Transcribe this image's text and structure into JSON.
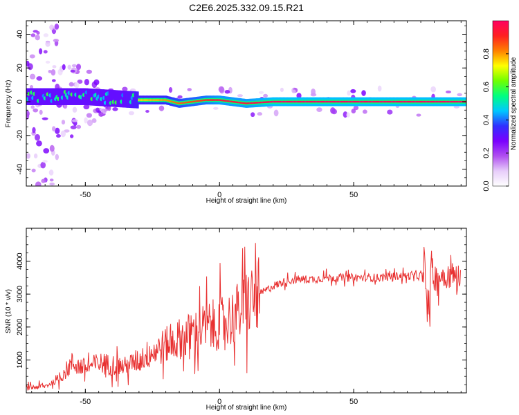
{
  "title": "C2E6.2025.332.09.15.R21",
  "chart_data": [
    {
      "type": "heatmap",
      "xlabel": "Height of straight line (km)",
      "ylabel": "Frequency (Hz)",
      "xlim": [
        -72,
        92
      ],
      "ylim": [
        -50,
        48
      ],
      "xticks": [
        -50,
        0,
        50
      ],
      "xtick_labels": [
        "-50",
        "0",
        "50"
      ],
      "yticks": [
        -40,
        -20,
        0,
        20,
        40
      ],
      "ytick_labels": [
        "-40",
        "-20",
        "0",
        "20",
        "40"
      ],
      "colorbar": {
        "label": "Normalized spectral amplitude",
        "range": [
          0,
          1
        ],
        "ticks": [
          0,
          0.2,
          0.4,
          0.6,
          0.8
        ],
        "tick_labels": [
          "0.0",
          "0.2",
          "0.4",
          "0.6",
          "0.8"
        ],
        "colors": [
          "#ffffff",
          "#e7cdfa",
          "#b04ff0",
          "#7a00ff",
          "#3030ff",
          "#00c8ff",
          "#00ff80",
          "#70ff00",
          "#ffff00",
          "#ff8000",
          "#ff2020",
          "#ff0060"
        ]
      },
      "ridge": [
        {
          "x": -60,
          "y": 3,
          "amp": 0.45
        },
        {
          "x": -50,
          "y": 3,
          "amp": 0.5
        },
        {
          "x": -40,
          "y": 2,
          "amp": 0.6
        },
        {
          "x": -30,
          "y": 1,
          "amp": 0.75
        },
        {
          "x": -20,
          "y": 1,
          "amp": 0.8
        },
        {
          "x": -15,
          "y": -1,
          "amp": 0.85
        },
        {
          "x": -5,
          "y": 1,
          "amp": 0.9
        },
        {
          "x": 0,
          "y": 1,
          "amp": 0.95
        },
        {
          "x": 10,
          "y": -1,
          "amp": 0.95
        },
        {
          "x": 20,
          "y": 0,
          "amp": 1.0
        },
        {
          "x": 60,
          "y": 0,
          "amp": 1.0
        },
        {
          "x": 90,
          "y": 0,
          "amp": 1.0
        }
      ]
    },
    {
      "type": "line",
      "xlabel": "Height of straight line (km)",
      "ylabel": "SNR (10 * v/v)",
      "xlim": [
        -72,
        92
      ],
      "ylim": [
        0,
        5000
      ],
      "xticks": [
        -50,
        0,
        50
      ],
      "xtick_labels": [
        "-50",
        "0",
        "50"
      ],
      "yticks": [
        1000,
        2000,
        3000,
        4000
      ],
      "ytick_labels": [
        "1000",
        "2000",
        "3000",
        "4000"
      ],
      "series": [
        {
          "color": "#e83030",
          "x": [
            -72,
            -65,
            -60,
            -55,
            -50,
            -45,
            -40,
            -35,
            -30,
            -25,
            -20,
            -15,
            -10,
            -5,
            0,
            5,
            10,
            15,
            20,
            25,
            30,
            35,
            40,
            45,
            50,
            55,
            60,
            65,
            70,
            75,
            78,
            80,
            85,
            90
          ],
          "y": [
            150,
            200,
            400,
            900,
            750,
            900,
            850,
            800,
            1000,
            1250,
            1450,
            1650,
            1800,
            2000,
            2100,
            2300,
            2700,
            3000,
            3250,
            3400,
            3450,
            3450,
            3500,
            3500,
            3500,
            3500,
            3500,
            3550,
            3550,
            3550,
            3600,
            3500,
            3600,
            3500
          ]
        }
      ]
    }
  ]
}
